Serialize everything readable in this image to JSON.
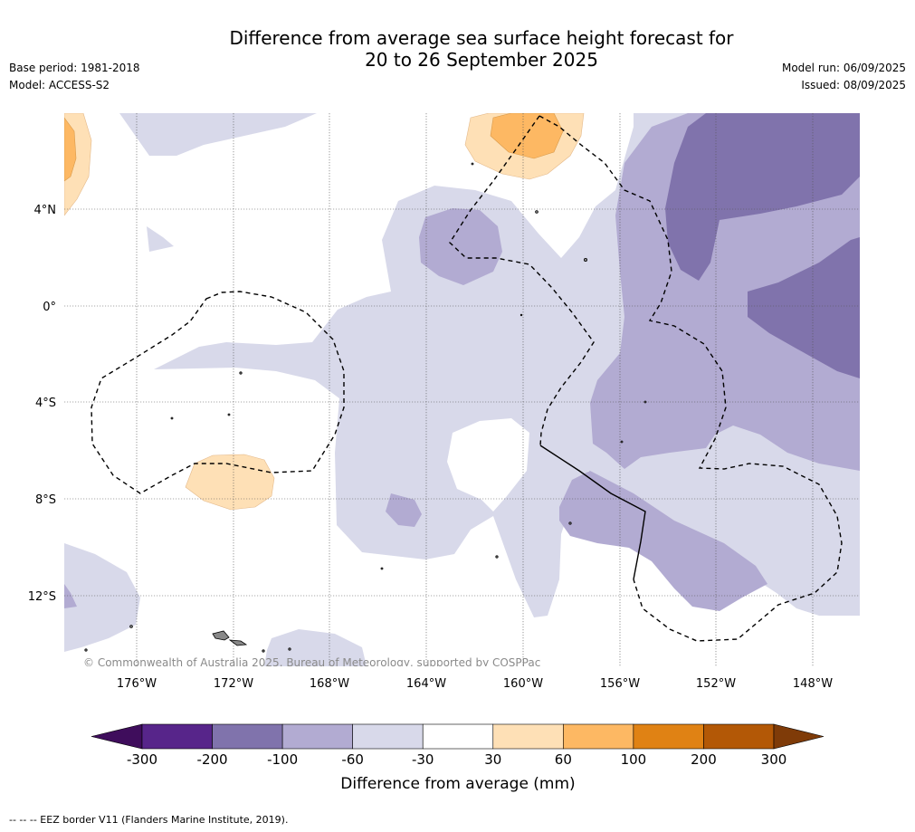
{
  "title_line1": "Difference from average sea surface height forecast for",
  "title_line2": "20 to 26 September 2025",
  "base_period": "Base period: 1981-2018",
  "model": "Model: ACCESS-S2",
  "model_run": "Model run: 06/09/2025",
  "issued": "Issued: 08/09/2025",
  "lat_labels": [
    "4°N",
    "0°",
    "4°S",
    "8°S",
    "12°S"
  ],
  "lon_labels": [
    "176°W",
    "172°W",
    "168°W",
    "164°W",
    "160°W",
    "156°W",
    "152°W",
    "148°W"
  ],
  "copyright": "© Commonwealth of Australia 2025, Bureau of Meteorology, supported by COSPPac",
  "colorbar": {
    "title": "Difference from average (mm)",
    "tick_labels": [
      "-300",
      "-200",
      "-100",
      "-60",
      "-30",
      "30",
      "60",
      "100",
      "200",
      "300"
    ],
    "colors": [
      "#3f0d5c",
      "#57258a",
      "#8073ac",
      "#b2abd2",
      "#d8d9ea",
      "#ffffff",
      "#fee0b6",
      "#fdb863",
      "#e08214",
      "#b35806",
      "#7f3b08"
    ]
  },
  "footnote": "-- -- -- EEZ border V11 (Flanders Marine Institute, 2019)."
}
